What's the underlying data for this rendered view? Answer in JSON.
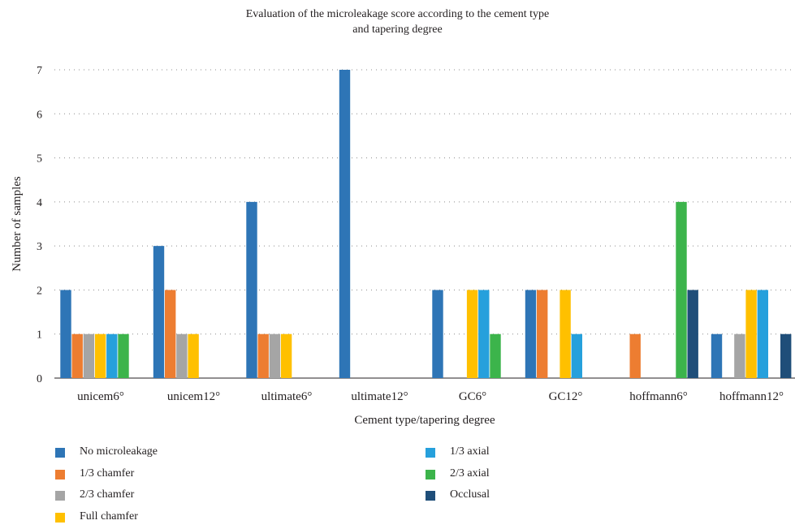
{
  "chart_data": {
    "type": "bar",
    "title": [
      "Evaluation of the microleakage score according to the cement type",
      "and tapering degree"
    ],
    "xlabel": "Cement type/tapering degree",
    "ylabel": "Number of samples",
    "ylim": [
      0,
      7
    ],
    "yticks": [
      0,
      1,
      2,
      3,
      4,
      5,
      6,
      7
    ],
    "grid": "horizontal dotted",
    "legend_position": "bottom",
    "categories": [
      "unicem6°",
      "unicem12°",
      "ultimate6°",
      "ultimate12°",
      "GC6°",
      "GC12°",
      "hoffmann6°",
      "hoffmann12°"
    ],
    "series": [
      {
        "name": "No microleakage",
        "color": "#2e75b6",
        "values": [
          2,
          3,
          4,
          7,
          2,
          2,
          0,
          1
        ]
      },
      {
        "name": "1/3 chamfer",
        "color": "#ed7d31",
        "values": [
          1,
          2,
          1,
          0,
          0,
          2,
          1,
          0
        ]
      },
      {
        "name": "2/3 chamfer",
        "color": "#a5a5a5",
        "values": [
          1,
          1,
          1,
          0,
          0,
          0,
          0,
          1
        ]
      },
      {
        "name": "Full chamfer",
        "color": "#ffc000",
        "values": [
          1,
          1,
          1,
          0,
          2,
          2,
          0,
          2
        ]
      },
      {
        "name": "1/3 axial",
        "color": "#26a0dc",
        "values": [
          1,
          0,
          0,
          0,
          2,
          1,
          0,
          2
        ]
      },
      {
        "name": "2/3 axial",
        "color": "#3cb44b",
        "values": [
          1,
          0,
          0,
          0,
          1,
          0,
          4,
          0
        ]
      },
      {
        "name": "Occlusal",
        "color": "#1f4e79",
        "values": [
          0,
          0,
          0,
          0,
          0,
          0,
          2,
          1
        ]
      }
    ]
  }
}
